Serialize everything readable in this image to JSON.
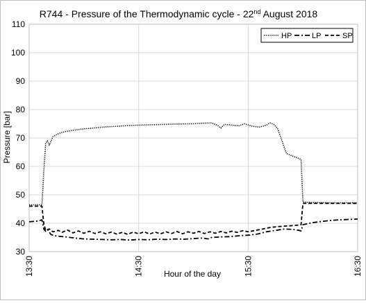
{
  "chart_data": {
    "type": "line",
    "title": {
      "prefix": "R744 - Pressure of the Thermodynamic cycle - 22",
      "superscript": "nd",
      "suffix": " August 2018"
    },
    "xlabel": "Hour of the day",
    "ylabel": "Pressure [bar]",
    "ylim": [
      30,
      110
    ],
    "yticks": [
      30,
      40,
      50,
      60,
      70,
      80,
      90,
      100,
      110
    ],
    "xlim": [
      "13:30",
      "16:30"
    ],
    "xticks": [
      "13:30",
      "14:30",
      "15:30",
      "16:30"
    ],
    "grid": true,
    "legend_position": "top-right",
    "series": [
      {
        "name": "HP",
        "style": "dotted",
        "points": [
          [
            "13:30",
            46.5
          ],
          [
            "13:35",
            46.5
          ],
          [
            "13:37",
            46.4
          ],
          [
            "13:38",
            58
          ],
          [
            "13:39",
            68
          ],
          [
            "13:40",
            69
          ],
          [
            "13:41",
            67.5
          ],
          [
            "13:43",
            70.5
          ],
          [
            "13:46",
            71.5
          ],
          [
            "13:50",
            72.3
          ],
          [
            "13:55",
            72.8
          ],
          [
            "14:00",
            73.2
          ],
          [
            "14:05",
            73.5
          ],
          [
            "14:10",
            73.8
          ],
          [
            "14:15",
            74
          ],
          [
            "14:20",
            74.2
          ],
          [
            "14:25",
            74.4
          ],
          [
            "14:30",
            74.5
          ],
          [
            "14:40",
            74.7
          ],
          [
            "14:50",
            74.9
          ],
          [
            "15:00",
            75
          ],
          [
            "15:05",
            75.2
          ],
          [
            "15:10",
            75.3
          ],
          [
            "15:13",
            74.5
          ],
          [
            "15:15",
            73.5
          ],
          [
            "15:17",
            74.8
          ],
          [
            "15:20",
            74.6
          ],
          [
            "15:25",
            74.3
          ],
          [
            "15:28",
            75
          ],
          [
            "15:32",
            74.2
          ],
          [
            "15:36",
            73.8
          ],
          [
            "15:40",
            74.5
          ],
          [
            "15:42",
            75.3
          ],
          [
            "15:44",
            74.8
          ],
          [
            "15:46",
            73.5
          ],
          [
            "15:48",
            70
          ],
          [
            "15:51",
            64.5
          ],
          [
            "15:55",
            63.5
          ],
          [
            "15:59",
            62.5
          ],
          [
            "16:00",
            47.5
          ],
          [
            "16:05",
            47.3
          ],
          [
            "16:15",
            47.2
          ],
          [
            "16:30",
            47.2
          ]
        ]
      },
      {
        "name": "LP",
        "style": "dash-dot",
        "points": [
          [
            "13:30",
            40.5
          ],
          [
            "13:35",
            40.8
          ],
          [
            "13:37",
            41.2
          ],
          [
            "13:38",
            38
          ],
          [
            "13:39",
            37.2
          ],
          [
            "13:40",
            37.8
          ],
          [
            "13:42",
            36
          ],
          [
            "13:45",
            35.5
          ],
          [
            "13:50",
            35.2
          ],
          [
            "13:55",
            34.8
          ],
          [
            "14:00",
            34.5
          ],
          [
            "14:05",
            34.4
          ],
          [
            "14:10",
            34.3
          ],
          [
            "14:15",
            34.2
          ],
          [
            "14:20",
            34.3
          ],
          [
            "14:25",
            34.1
          ],
          [
            "14:30",
            34.3
          ],
          [
            "14:35",
            34.2
          ],
          [
            "14:40",
            34.4
          ],
          [
            "14:45",
            34.3
          ],
          [
            "14:50",
            34.5
          ],
          [
            "14:55",
            34.4
          ],
          [
            "15:00",
            34.6
          ],
          [
            "15:05",
            34.8
          ],
          [
            "15:08",
            34.5
          ],
          [
            "15:10",
            35
          ],
          [
            "15:15",
            35.2
          ],
          [
            "15:20",
            35.3
          ],
          [
            "15:25",
            35.6
          ],
          [
            "15:30",
            35.8
          ],
          [
            "15:35",
            36.2
          ],
          [
            "15:40",
            37
          ],
          [
            "15:45",
            37.5
          ],
          [
            "15:50",
            38
          ],
          [
            "15:55",
            37.8
          ],
          [
            "15:58",
            37.5
          ],
          [
            "15:59",
            37.3
          ],
          [
            "16:00",
            39.5
          ],
          [
            "16:05",
            40.2
          ],
          [
            "16:10",
            40.6
          ],
          [
            "16:15",
            41
          ],
          [
            "16:20",
            41.2
          ],
          [
            "16:30",
            41.5
          ]
        ]
      },
      {
        "name": "SP",
        "style": "dashed",
        "points": [
          [
            "13:30",
            46
          ],
          [
            "13:35",
            46
          ],
          [
            "13:37",
            46
          ],
          [
            "13:38",
            40
          ],
          [
            "13:39",
            37.5
          ],
          [
            "13:41",
            38
          ],
          [
            "13:43",
            37
          ],
          [
            "13:46",
            37.5
          ],
          [
            "13:48",
            36.8
          ],
          [
            "13:51",
            37.6
          ],
          [
            "13:54",
            36.6
          ],
          [
            "13:57",
            37.3
          ],
          [
            "14:00",
            36.5
          ],
          [
            "14:03",
            37.2
          ],
          [
            "14:06",
            36.4
          ],
          [
            "14:09",
            37
          ],
          [
            "14:12",
            36.3
          ],
          [
            "14:15",
            36.9
          ],
          [
            "14:18",
            36.2
          ],
          [
            "14:21",
            36.8
          ],
          [
            "14:24",
            36.1
          ],
          [
            "14:27",
            36.9
          ],
          [
            "14:30",
            36.3
          ],
          [
            "14:33",
            37
          ],
          [
            "14:36",
            36.2
          ],
          [
            "14:39",
            36.9
          ],
          [
            "14:42",
            36.3
          ],
          [
            "14:45",
            37
          ],
          [
            "14:48",
            36.4
          ],
          [
            "14:51",
            37.1
          ],
          [
            "14:54",
            36.3
          ],
          [
            "14:57",
            37
          ],
          [
            "15:00",
            36.5
          ],
          [
            "15:03",
            37.1
          ],
          [
            "15:06",
            36.4
          ],
          [
            "15:09",
            37
          ],
          [
            "15:12",
            36.5
          ],
          [
            "15:15",
            37.1
          ],
          [
            "15:18",
            36.6
          ],
          [
            "15:21",
            37.2
          ],
          [
            "15:24",
            36.8
          ],
          [
            "15:27",
            37.4
          ],
          [
            "15:30",
            37
          ],
          [
            "15:34",
            37.5
          ],
          [
            "15:38",
            38
          ],
          [
            "15:42",
            38.5
          ],
          [
            "15:46",
            38.8
          ],
          [
            "15:50",
            39
          ],
          [
            "15:55",
            39.2
          ],
          [
            "15:59",
            39.5
          ],
          [
            "16:00",
            47
          ],
          [
            "16:05",
            47
          ],
          [
            "16:15",
            47
          ],
          [
            "16:30",
            47
          ]
        ]
      }
    ]
  }
}
